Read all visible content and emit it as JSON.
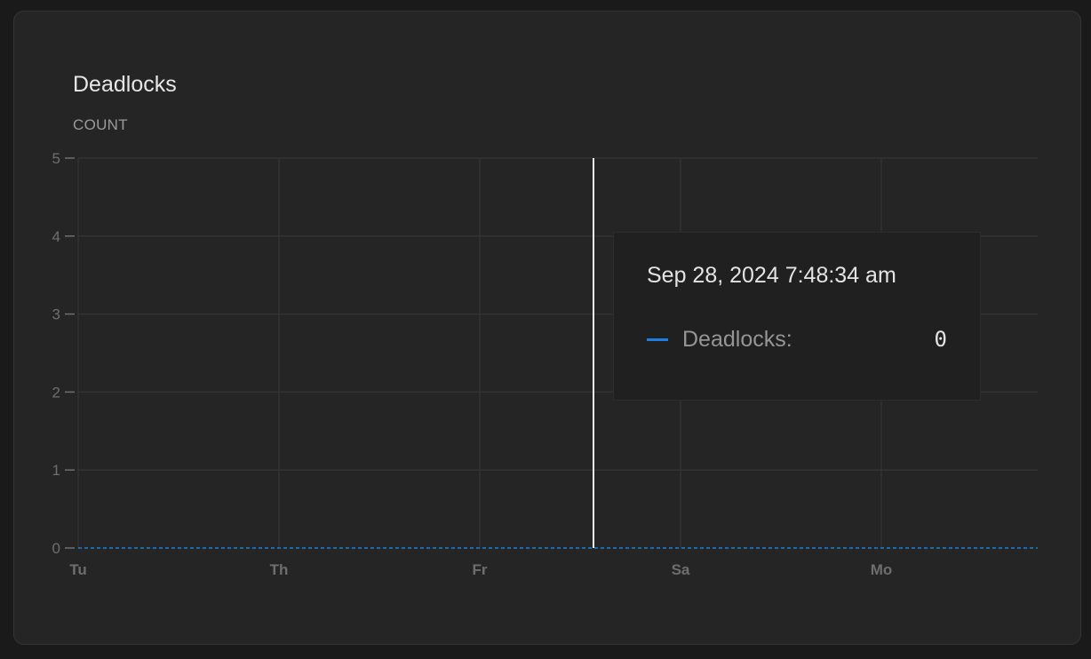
{
  "panel": {
    "title": "Deadlocks",
    "unit_label": "COUNT"
  },
  "colors": {
    "series": "#1a7fe0",
    "grid": "#333333",
    "cursor": "#f0f0f0",
    "tick_label": "#6e6e6e"
  },
  "tooltip": {
    "time": "Sep 28, 2024 7:48:34 am",
    "series_label": "Deadlocks:",
    "value": "0"
  },
  "chart_data": {
    "type": "line",
    "title": "Deadlocks",
    "ylabel": "COUNT",
    "ylim": [
      0,
      5
    ],
    "yticks": [
      0,
      1,
      2,
      3,
      4,
      5
    ],
    "xtick_labels": [
      "Tu",
      "Th",
      "Fr",
      "Sa",
      "Mo"
    ],
    "grid": true,
    "series": [
      {
        "name": "Deadlocks",
        "values": [
          0,
          0,
          0,
          0,
          0,
          0
        ],
        "style": "dashed"
      }
    ],
    "hover_value": 0
  }
}
